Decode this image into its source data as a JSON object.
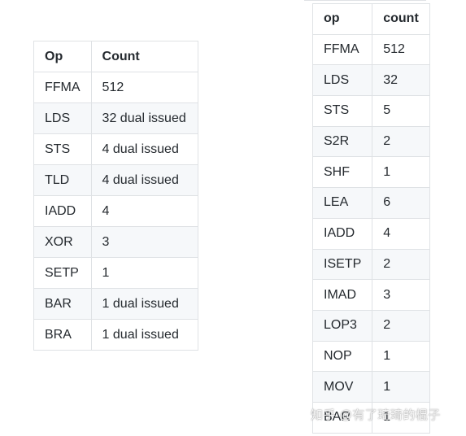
{
  "left_table": {
    "headers": [
      "Op",
      "Count"
    ],
    "rows": [
      [
        "FFMA",
        "512"
      ],
      [
        "LDS",
        "32 dual issued"
      ],
      [
        "STS",
        "4 dual issued"
      ],
      [
        "TLD",
        "4 dual issued"
      ],
      [
        "IADD",
        "4"
      ],
      [
        "XOR",
        "3"
      ],
      [
        "SETP",
        "1"
      ],
      [
        "BAR",
        "1 dual issued"
      ],
      [
        "BRA",
        "1 dual issued"
      ]
    ]
  },
  "right_table": {
    "headers": [
      "op",
      "count"
    ],
    "rows": [
      [
        "FFMA",
        "512"
      ],
      [
        "LDS",
        "32"
      ],
      [
        "STS",
        "5"
      ],
      [
        "S2R",
        "2"
      ],
      [
        "SHF",
        "1"
      ],
      [
        "LEA",
        "6"
      ],
      [
        "IADD",
        "4"
      ],
      [
        "ISETP",
        "2"
      ],
      [
        "IMAD",
        "3"
      ],
      [
        "LOP3",
        "2"
      ],
      [
        "NOP",
        "1"
      ],
      [
        "MOV",
        "1"
      ],
      [
        "BAR",
        "1"
      ]
    ]
  },
  "watermark": "知乎 @有了琦琦的棍子"
}
